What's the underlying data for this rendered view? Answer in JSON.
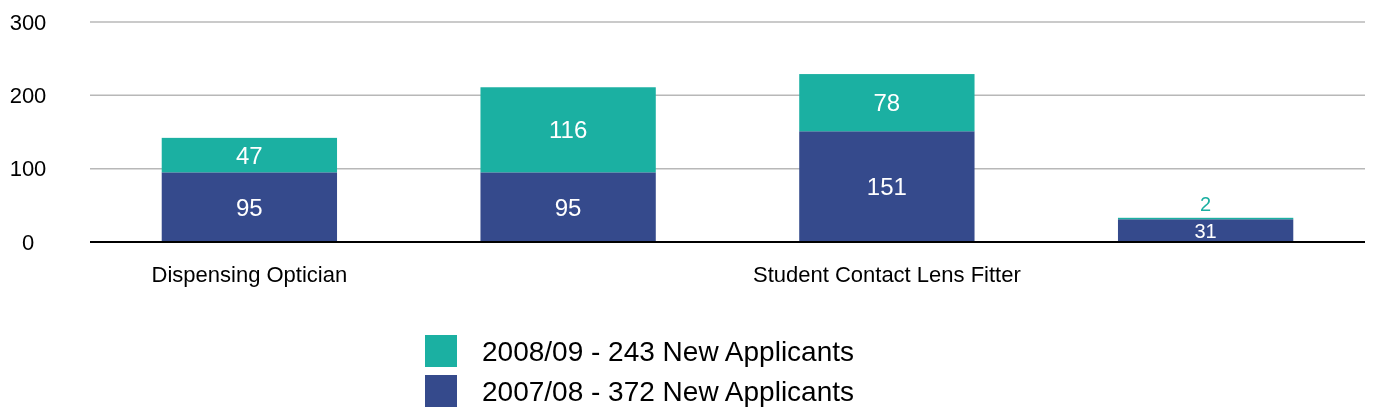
{
  "chart_data": {
    "type": "bar",
    "stacked": true,
    "categories": [
      "Dispensing Optician",
      null,
      "Student Contact Lens Fitter",
      null
    ],
    "series": [
      {
        "name": "2007/08 - 372 New Applicants",
        "color": "#354a8c",
        "values": [
          95,
          95,
          151,
          31
        ]
      },
      {
        "name": "2008/09 - 243 New Applicants",
        "color": "#1bb0a2",
        "values": [
          47,
          116,
          78,
          2
        ]
      }
    ],
    "ylim": [
      0,
      300
    ],
    "yticks": [
      0,
      100,
      200,
      300
    ],
    "grid": "y",
    "data_labels": true,
    "legend": "bottom"
  }
}
